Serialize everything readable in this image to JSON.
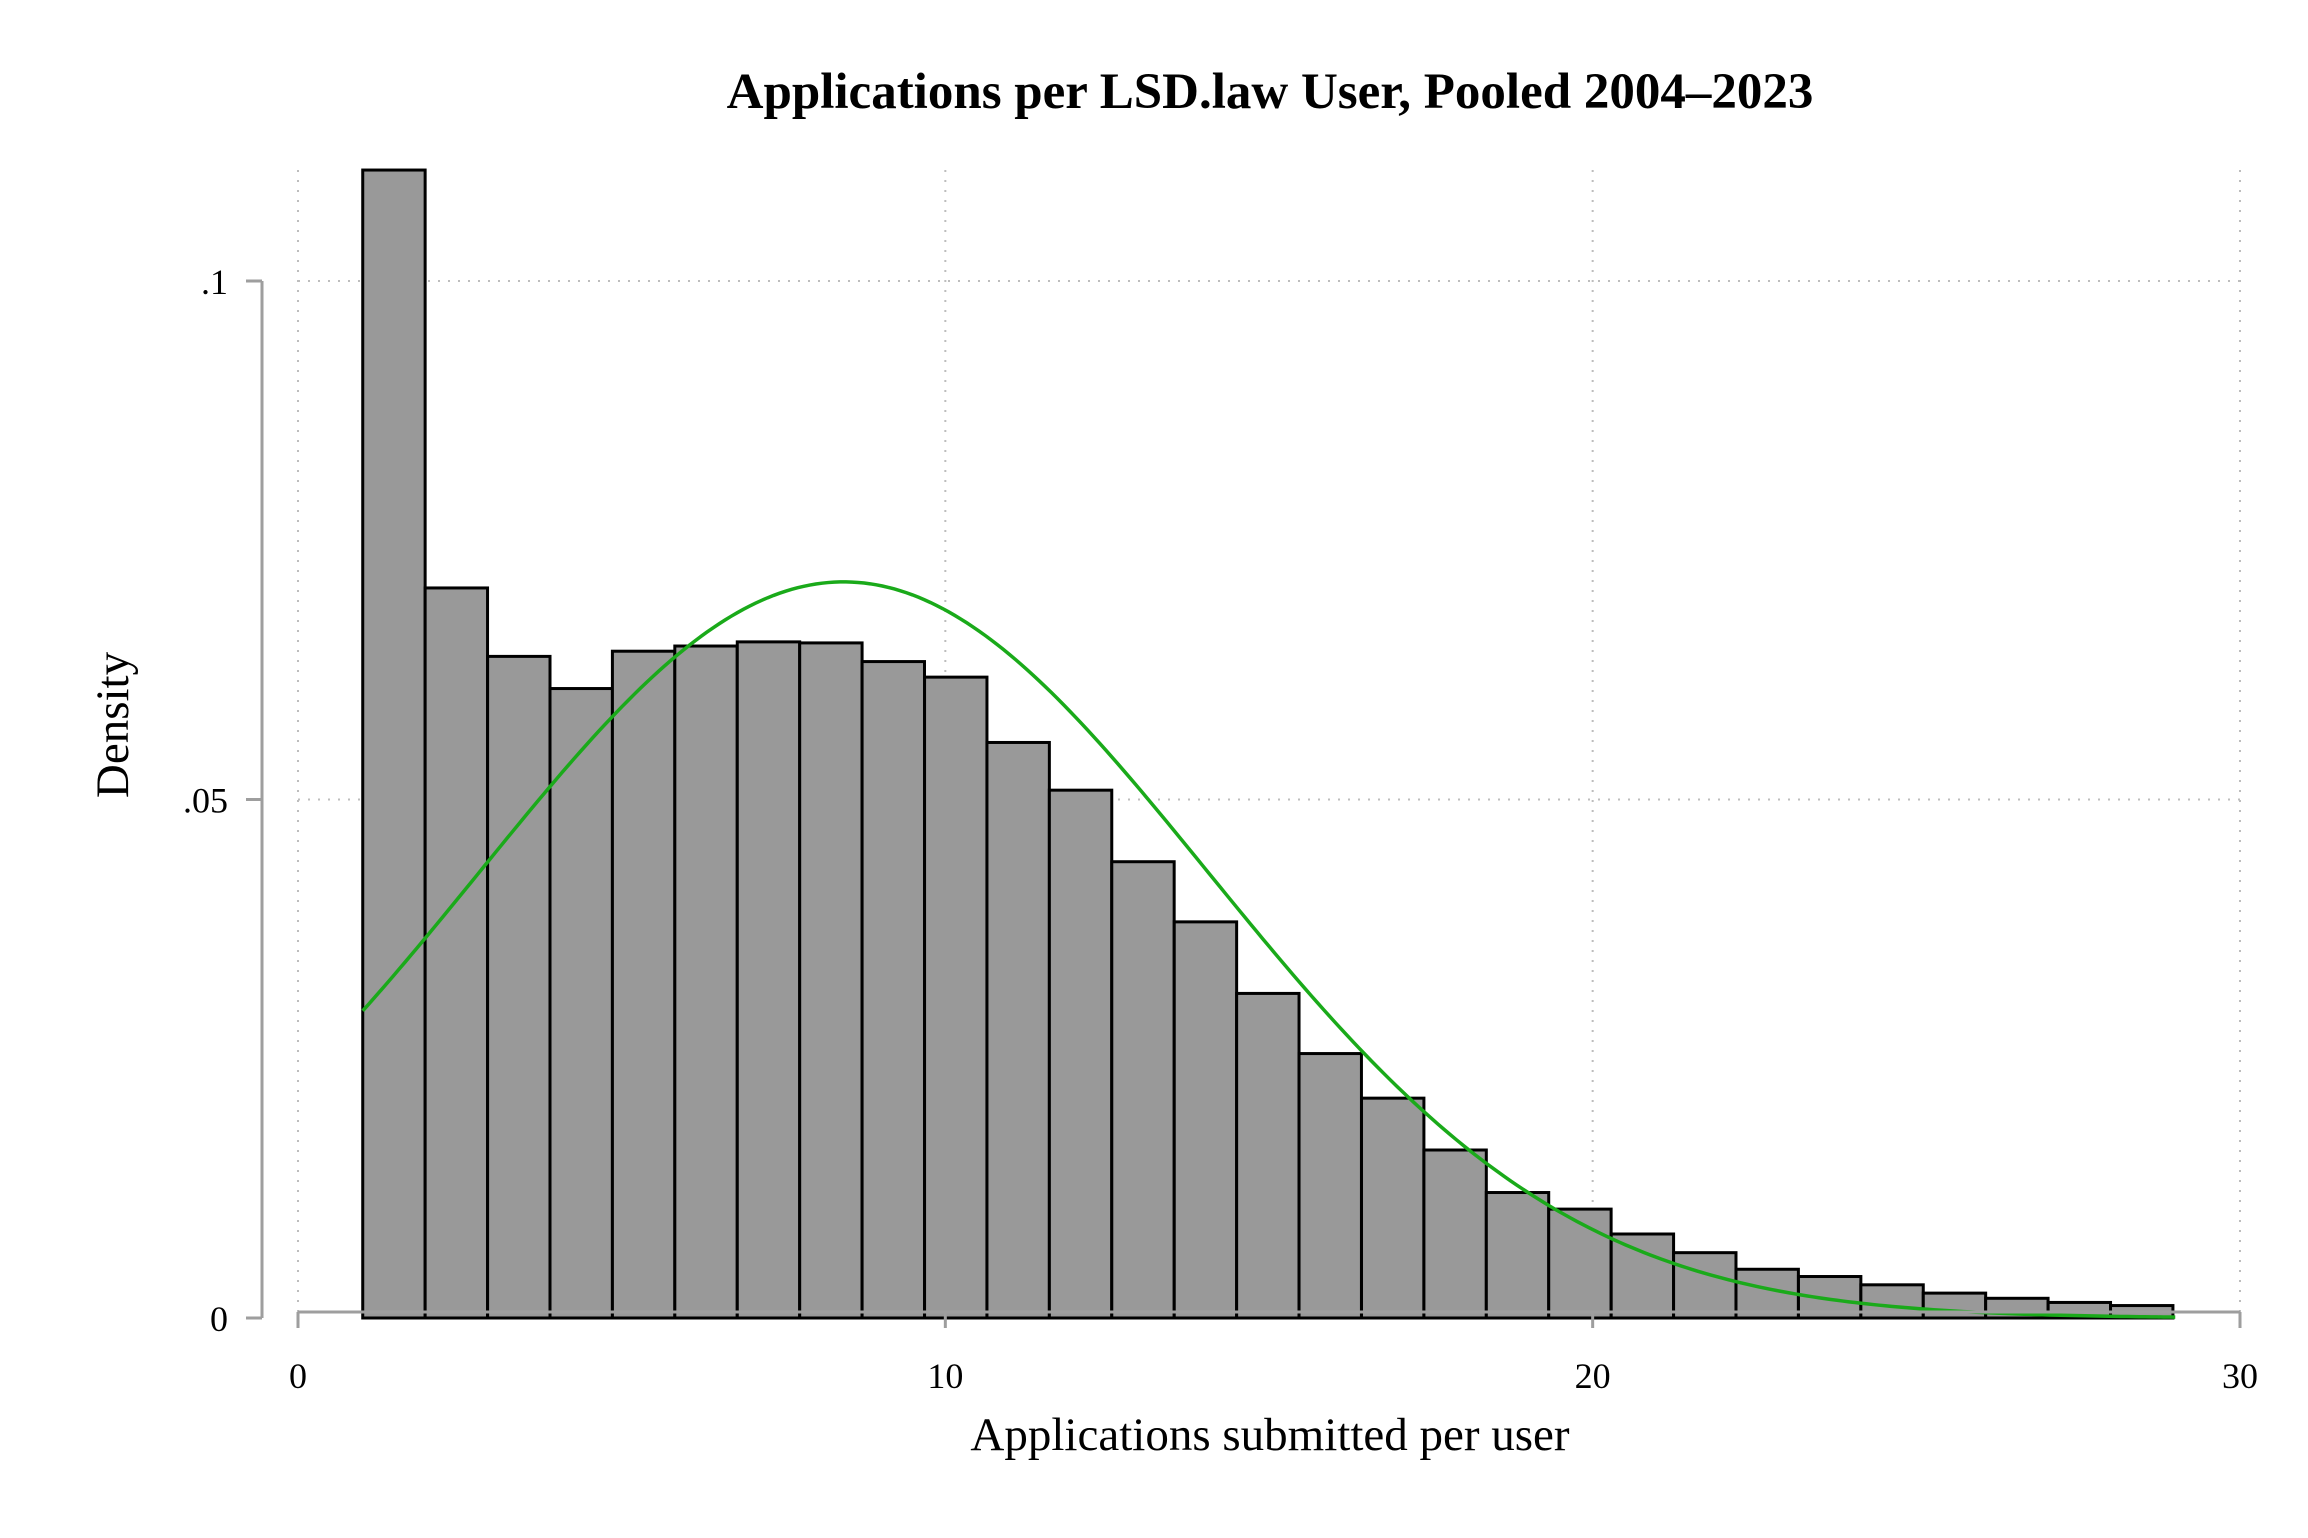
{
  "chart_data": {
    "type": "bar",
    "subtype": "histogram",
    "title": "Applications per LSD.law User, Pooled 2004–2023",
    "xlabel": "Applications submitted per user",
    "ylabel": "Density",
    "xlim": [
      0,
      30
    ],
    "ylim": [
      0,
      0.1
    ],
    "x_ticks": [
      {
        "value": 0,
        "label": "0"
      },
      {
        "value": 10,
        "label": "10"
      },
      {
        "value": 20,
        "label": "20"
      },
      {
        "value": 30,
        "label": "30"
      }
    ],
    "y_ticks": [
      {
        "value": 0,
        "label": "0"
      },
      {
        "value": 0.05,
        "label": ".05"
      },
      {
        "value": 0.1,
        "label": ".1"
      }
    ],
    "grid": true,
    "bin_width": 0.964,
    "bins": [
      {
        "x0": 1.0,
        "density": 0.1107
      },
      {
        "x0": 1.964,
        "density": 0.0704
      },
      {
        "x0": 2.929,
        "density": 0.0638
      },
      {
        "x0": 3.893,
        "density": 0.0607
      },
      {
        "x0": 4.857,
        "density": 0.0643
      },
      {
        "x0": 5.821,
        "density": 0.0648
      },
      {
        "x0": 6.786,
        "density": 0.0652
      },
      {
        "x0": 7.75,
        "density": 0.0651
      },
      {
        "x0": 8.714,
        "density": 0.0633
      },
      {
        "x0": 9.679,
        "density": 0.0618
      },
      {
        "x0": 10.643,
        "density": 0.0555
      },
      {
        "x0": 11.607,
        "density": 0.0509
      },
      {
        "x0": 12.571,
        "density": 0.044
      },
      {
        "x0": 13.536,
        "density": 0.0382
      },
      {
        "x0": 14.5,
        "density": 0.0313
      },
      {
        "x0": 15.464,
        "density": 0.0255
      },
      {
        "x0": 16.429,
        "density": 0.0212
      },
      {
        "x0": 17.393,
        "density": 0.0162
      },
      {
        "x0": 18.357,
        "density": 0.0121
      },
      {
        "x0": 19.321,
        "density": 0.0105
      },
      {
        "x0": 20.286,
        "density": 0.0081
      },
      {
        "x0": 21.25,
        "density": 0.0063
      },
      {
        "x0": 22.214,
        "density": 0.0047
      },
      {
        "x0": 23.179,
        "density": 0.004
      },
      {
        "x0": 24.143,
        "density": 0.0032
      },
      {
        "x0": 25.107,
        "density": 0.0024
      },
      {
        "x0": 26.071,
        "density": 0.0019
      },
      {
        "x0": 27.036,
        "density": 0.0015
      },
      {
        "x0": 28.0,
        "density": 0.0012
      }
    ],
    "normal_overlay": {
      "mean": 8.43,
      "sd": 5.62,
      "x_range": [
        1.0,
        29.0
      ]
    },
    "colors": {
      "bar_fill": "#999999",
      "bar_edge": "#000000",
      "curve": "#1aaa1a",
      "axis": "#9e9e9e",
      "grid": "#bdbdbd"
    }
  }
}
